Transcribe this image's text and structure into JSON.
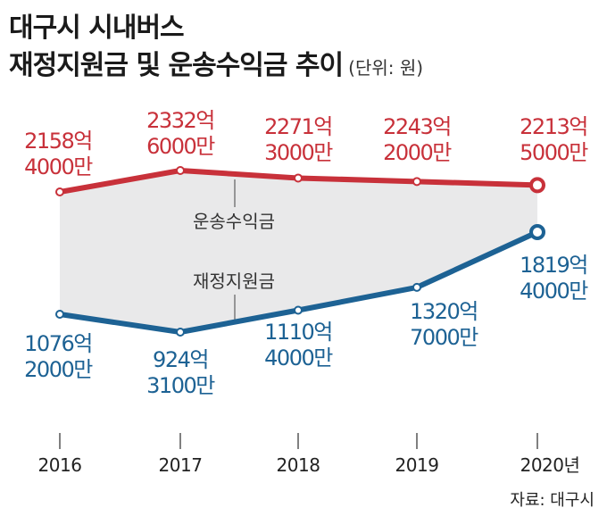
{
  "header": {
    "title_line1": "대구시 시내버스",
    "title_line2": "재정지원금 및 운송수익금 추이",
    "unit": "(단위: 원)"
  },
  "source": "자료: 대구시",
  "colors": {
    "revenue": "#c8313a",
    "subsidy": "#1d6294",
    "band": "#e9e9ea",
    "axis": "#555555"
  },
  "chart_data": {
    "type": "line",
    "title": "재정지원금 및 운송수익금 추이",
    "unit": "(단위: 원)",
    "categories": [
      "2016",
      "2017",
      "2018",
      "2019",
      "2020년"
    ],
    "series": [
      {
        "name": "운송수익금",
        "values": [
          215840000000,
          233260000000,
          227130000000,
          224320000000,
          221350000000
        ],
        "labels": [
          [
            "2158억",
            "4000만"
          ],
          [
            "2332억",
            "6000만"
          ],
          [
            "2271억",
            "3000만"
          ],
          [
            "2243억",
            "2000만"
          ],
          [
            "2213억",
            "5000만"
          ]
        ]
      },
      {
        "name": "재정지원금",
        "values": [
          107620000000,
          92431000000,
          111040000000,
          132070000000,
          181940000000
        ],
        "labels": [
          [
            "1076억",
            "2000만"
          ],
          [
            "924억",
            "3100만"
          ],
          [
            "1110억",
            "4000만"
          ],
          [
            "1320억",
            "7000만"
          ],
          [
            "1819억",
            "4000만"
          ]
        ]
      }
    ],
    "xlabel": "",
    "ylabel": "",
    "grid": false,
    "legend": "inline"
  }
}
